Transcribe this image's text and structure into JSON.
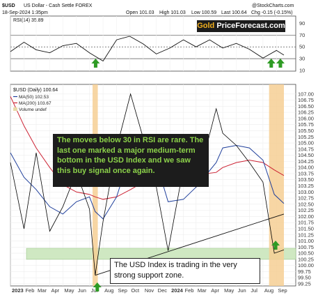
{
  "header": {
    "symbol": "$USD",
    "name": "US Dollar - Cash Settle FOREX",
    "date": "18-Sep-2024 1:35pm",
    "open": "Open 101.03",
    "high": "High 101.03",
    "low": "Low 100.59",
    "last": "Last 100.64",
    "chg": "Chg -0.15 (-0.15%)",
    "source": "@StockCharts.com"
  },
  "rsi_legend": "RSI(14) 35.89",
  "price_legend": {
    "main": "$USD (Daily) 100.64",
    "ma50": "MA(50) 102.53",
    "ma200": "MA(200) 103.67",
    "volume": "Volume undef"
  },
  "watermark": {
    "gold": "Gold",
    "rest": " PriceForecast.com"
  },
  "annotations": {
    "rsi_note": "The moves below 30 in RSI are rare. The last one marked a major medium-term bottom in the USD Index and we saw this buy signal once again.",
    "support_note": "The USD Index is trading in the very strong support zone."
  },
  "colors": {
    "price": "#000000",
    "ma50": "#1f3f9b",
    "ma200": "#cc2233",
    "support_zone": "#cfe8c2",
    "highlight": "#f6cf94",
    "arrow": "#2e9b24",
    "annotation_bg": "#1c1c1c",
    "annotation_text": "#8cd24a"
  },
  "icons": [
    "up-arrow-icon"
  ],
  "chart_data": [
    {
      "type": "line",
      "title": "RSI(14) 35.89",
      "ylim": [
        10,
        100
      ],
      "y_ticks": [
        90,
        70,
        50,
        30,
        10
      ],
      "reference_lines": [
        70,
        50,
        30
      ],
      "x": [
        "2023-01-01",
        "2023-02-01",
        "2023-03-01",
        "2023-04-01",
        "2023-05-01",
        "2023-06-01",
        "2023-07-01",
        "2023-08-01",
        "2023-09-01",
        "2023-10-01",
        "2023-11-01",
        "2023-12-01",
        "2024-01-01",
        "2024-02-01",
        "2024-03-01",
        "2024-04-01",
        "2024-05-01",
        "2024-06-01",
        "2024-07-01",
        "2024-08-01",
        "2024-09-01",
        "2024-09-18"
      ],
      "series": [
        {
          "values": [
            42,
            58,
            45,
            40,
            52,
            56,
            40,
            26,
            62,
            68,
            55,
            38,
            48,
            62,
            50,
            62,
            48,
            56,
            46,
            31,
            44,
            36
          ]
        }
      ],
      "buy_signals": [
        "2023-07-15",
        "2024-08-20",
        "2024-09-10"
      ]
    },
    {
      "type": "line",
      "title": "$USD (Daily) 100.64",
      "ylim": [
        99.25,
        107.25
      ],
      "y_ticks": [
        107.0,
        106.75,
        106.5,
        106.25,
        106.0,
        105.75,
        105.5,
        105.25,
        105.0,
        104.75,
        104.5,
        104.25,
        104.0,
        103.75,
        103.5,
        103.25,
        103.0,
        102.75,
        102.5,
        102.25,
        102.0,
        101.75,
        101.5,
        101.25,
        101.0,
        100.75,
        100.5,
        100.25,
        100.0,
        99.75,
        99.5,
        99.25
      ],
      "x_tick_labels": [
        "2023",
        "Feb",
        "Mar",
        "Apr",
        "May",
        "Jun",
        "Jul",
        "Aug",
        "Sep",
        "Oct",
        "Nov",
        "Dec",
        "2024",
        "Feb",
        "Mar",
        "Apr",
        "May",
        "Jun",
        "Jul",
        "Aug",
        "Sep"
      ],
      "x": [
        "2023-01-01",
        "2023-02-01",
        "2023-03-01",
        "2023-04-01",
        "2023-05-01",
        "2023-06-01",
        "2023-07-01",
        "2023-07-14",
        "2023-08-01",
        "2023-09-01",
        "2023-10-03",
        "2023-11-01",
        "2023-12-01",
        "2023-12-28",
        "2024-02-01",
        "2024-03-01",
        "2024-04-16",
        "2024-05-01",
        "2024-06-01",
        "2024-07-01",
        "2024-08-01",
        "2024-08-27",
        "2024-09-18"
      ],
      "series": [
        {
          "name": "$USD (Daily) 100.64",
          "values": [
            104.2,
            101.5,
            104.6,
            101.4,
            102.4,
            103.8,
            102.3,
            99.6,
            101.8,
            104.8,
            107.0,
            105.2,
            103.2,
            100.6,
            104.0,
            103.2,
            106.4,
            105.4,
            104.9,
            104.2,
            103.4,
            100.5,
            100.64
          ]
        },
        {
          "name": "MA(50) 102.53",
          "values": [
            104.6,
            103.6,
            103.1,
            102.4,
            102.1,
            102.6,
            102.8,
            102.2,
            101.9,
            102.8,
            104.6,
            105.2,
            104.2,
            102.6,
            102.7,
            103.2,
            104.2,
            104.8,
            104.9,
            104.8,
            104.3,
            102.9,
            102.53
          ]
        },
        {
          "name": "MA(200) 103.67",
          "values": [
            106.9,
            105.7,
            104.8,
            104.0,
            103.3,
            103.0,
            102.9,
            102.8,
            102.7,
            102.8,
            103.1,
            103.4,
            103.5,
            103.6,
            103.6,
            103.7,
            103.8,
            104.0,
            104.2,
            104.3,
            104.2,
            103.9,
            103.67
          ]
        }
      ],
      "support_zone": [
        100.25,
        100.7
      ],
      "trendline": {
        "x": [
          "2023-07-14",
          "2024-09-18"
        ],
        "y": [
          99.6,
          102.1
        ]
      },
      "highlight_periods": [
        [
          "2023-07-08",
          "2023-07-20"
        ],
        [
          "2024-08-15",
          "2024-09-18"
        ]
      ],
      "grid": true
    }
  ]
}
